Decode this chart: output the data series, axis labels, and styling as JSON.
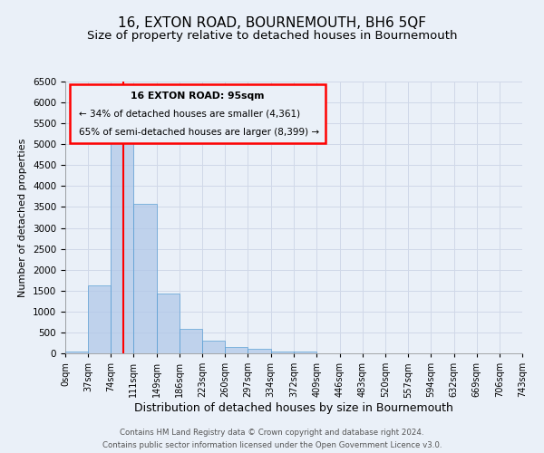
{
  "title": "16, EXTON ROAD, BOURNEMOUTH, BH6 5QF",
  "subtitle": "Size of property relative to detached houses in Bournemouth",
  "xlabel": "Distribution of detached houses by size in Bournemouth",
  "ylabel": "Number of detached properties",
  "footer_line1": "Contains HM Land Registry data © Crown copyright and database right 2024.",
  "footer_line2": "Contains public sector information licensed under the Open Government Licence v3.0.",
  "bin_edges": [
    0,
    37,
    74,
    111,
    149,
    186,
    223,
    260,
    297,
    334,
    372,
    409,
    446,
    483,
    520,
    557,
    594,
    632,
    669,
    706,
    743
  ],
  "bar_heights": [
    50,
    1620,
    5080,
    3580,
    1420,
    580,
    300,
    150,
    100,
    50,
    50,
    0,
    0,
    0,
    0,
    0,
    0,
    0,
    0,
    0
  ],
  "bar_color": "#aec6e8",
  "bar_edge_color": "#5a9fd4",
  "bar_alpha": 0.7,
  "vline_x": 95,
  "vline_color": "red",
  "ylim": [
    0,
    6500
  ],
  "yticks": [
    0,
    500,
    1000,
    1500,
    2000,
    2500,
    3000,
    3500,
    4000,
    4500,
    5000,
    5500,
    6000,
    6500
  ],
  "annotation_box_text_line1": "16 EXTON ROAD: 95sqm",
  "annotation_box_text_line2": "← 34% of detached houses are smaller (4,361)",
  "annotation_box_text_line3": "65% of semi-detached houses are larger (8,399) →",
  "grid_color": "#d0d8e8",
  "background_color": "#eaf0f8",
  "title_fontsize": 11,
  "subtitle_fontsize": 9.5,
  "xlabel_fontsize": 9,
  "ylabel_fontsize": 8,
  "tick_labels": [
    "0sqm",
    "37sqm",
    "74sqm",
    "111sqm",
    "149sqm",
    "186sqm",
    "223sqm",
    "260sqm",
    "297sqm",
    "334sqm",
    "372sqm",
    "409sqm",
    "446sqm",
    "483sqm",
    "520sqm",
    "557sqm",
    "594sqm",
    "632sqm",
    "669sqm",
    "706sqm",
    "743sqm"
  ]
}
